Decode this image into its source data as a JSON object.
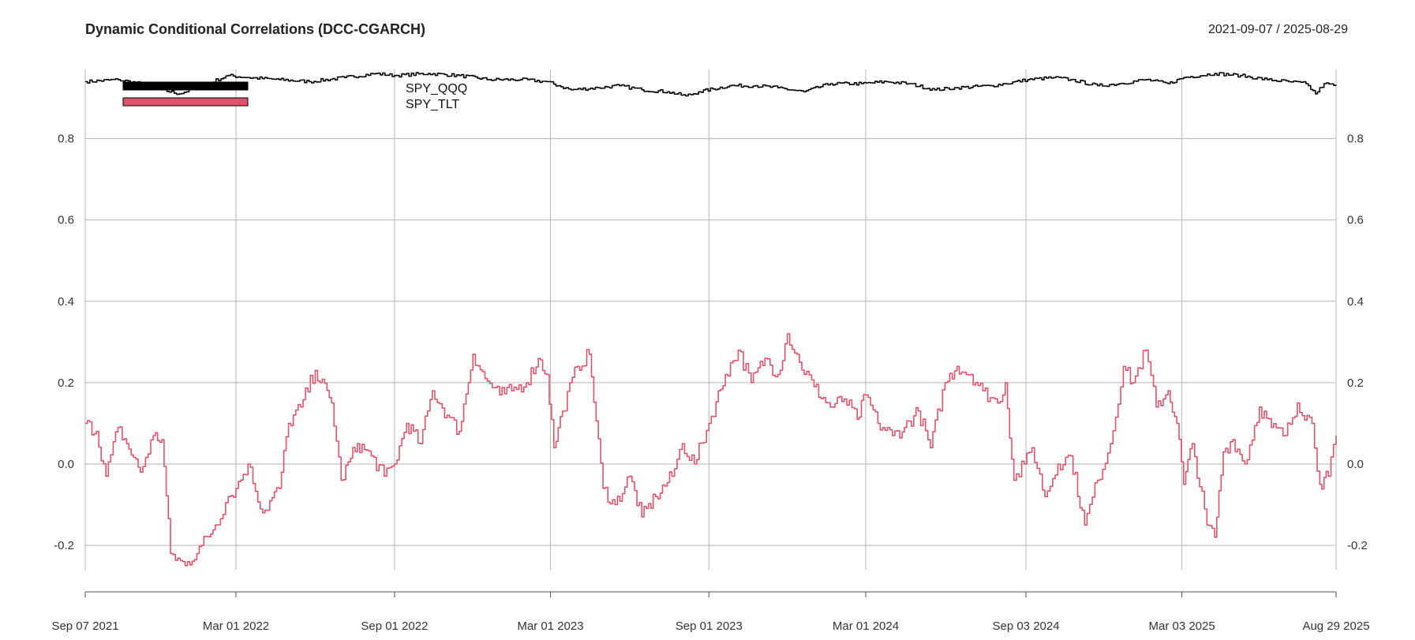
{
  "chart_data": {
    "type": "line",
    "title": "Dynamic Conditional Correlations (DCC-CGARCH)",
    "date_range": "2021-09-07 / 2025-08-29",
    "xlabel": "",
    "ylabel": "",
    "x_range": [
      "2021-09-07",
      "2025-08-29"
    ],
    "ylim": [
      -0.26,
      0.97
    ],
    "grid": true,
    "legend_position": "top-left",
    "y_ticks": [
      -0.2,
      0.0,
      0.2,
      0.4,
      0.6,
      0.8
    ],
    "y_tick_labels": [
      "-0.2",
      "0.0",
      "0.2",
      "0.4",
      "0.6",
      "0.8"
    ],
    "x_ticks": [
      {
        "date": "2021-09-07",
        "label": "Sep 07 2021"
      },
      {
        "date": "2022-03-01",
        "label": "Mar 01 2022"
      },
      {
        "date": "2022-09-01",
        "label": "Sep 01 2022"
      },
      {
        "date": "2023-03-01",
        "label": "Mar 01 2023"
      },
      {
        "date": "2023-09-01",
        "label": "Sep 01 2023"
      },
      {
        "date": "2024-03-01",
        "label": "Mar 01 2024"
      },
      {
        "date": "2024-09-03",
        "label": "Sep 03 2024"
      },
      {
        "date": "2025-03-03",
        "label": "Mar 03 2025"
      },
      {
        "date": "2025-08-29",
        "label": "Aug 29 2025"
      }
    ],
    "series": [
      {
        "name": "SPY_QQQ",
        "color": "#000000",
        "x": [
          "2021-09-07",
          "2021-10-15",
          "2021-11-10",
          "2021-12-05",
          "2021-12-25",
          "2022-01-20",
          "2022-02-20",
          "2022-03-15",
          "2022-04-20",
          "2022-05-25",
          "2022-07-05",
          "2022-08-10",
          "2022-09-01",
          "2022-10-10",
          "2022-11-15",
          "2022-12-20",
          "2023-01-25",
          "2023-02-25",
          "2023-03-10",
          "2023-03-25",
          "2023-04-25",
          "2023-05-20",
          "2023-06-15",
          "2023-07-15",
          "2023-08-05",
          "2023-08-20",
          "2023-09-25",
          "2023-10-25",
          "2023-11-20",
          "2023-12-20",
          "2024-01-20",
          "2024-02-25",
          "2024-03-25",
          "2024-04-20",
          "2024-05-20",
          "2024-06-15",
          "2024-07-25",
          "2024-08-10",
          "2024-09-05",
          "2024-10-05",
          "2024-10-25",
          "2024-11-25",
          "2024-12-20",
          "2025-01-20",
          "2025-02-15",
          "2025-03-05",
          "2025-04-10",
          "2025-05-10",
          "2025-06-10",
          "2025-07-05",
          "2025-07-25",
          "2025-08-05",
          "2025-08-15",
          "2025-08-29"
        ],
        "values": [
          0.94,
          0.945,
          0.935,
          0.92,
          0.91,
          0.93,
          0.955,
          0.95,
          0.945,
          0.94,
          0.95,
          0.96,
          0.955,
          0.96,
          0.955,
          0.945,
          0.945,
          0.94,
          0.93,
          0.92,
          0.925,
          0.93,
          0.92,
          0.915,
          0.905,
          0.915,
          0.93,
          0.93,
          0.925,
          0.915,
          0.935,
          0.935,
          0.94,
          0.935,
          0.92,
          0.925,
          0.93,
          0.935,
          0.945,
          0.95,
          0.945,
          0.93,
          0.935,
          0.945,
          0.935,
          0.95,
          0.96,
          0.955,
          0.945,
          0.94,
          0.935,
          0.91,
          0.935,
          0.93
        ]
      },
      {
        "name": "SPY_TLT",
        "color": "#DF536B",
        "x": [
          "2021-09-07",
          "2021-09-20",
          "2021-10-01",
          "2021-10-15",
          "2021-10-25",
          "2021-11-10",
          "2021-11-25",
          "2021-12-05",
          "2021-12-15",
          "2022-01-01",
          "2022-01-20",
          "2022-02-05",
          "2022-02-20",
          "2022-03-01",
          "2022-03-15",
          "2022-04-01",
          "2022-04-20",
          "2022-05-01",
          "2022-05-15",
          "2022-06-01",
          "2022-06-20",
          "2022-07-01",
          "2022-07-20",
          "2022-08-05",
          "2022-08-20",
          "2022-09-01",
          "2022-09-15",
          "2022-10-01",
          "2022-10-15",
          "2022-11-01",
          "2022-11-15",
          "2022-12-01",
          "2022-12-15",
          "2023-01-01",
          "2023-01-15",
          "2023-02-01",
          "2023-02-15",
          "2023-02-25",
          "2023-03-05",
          "2023-03-15",
          "2023-04-01",
          "2023-04-15",
          "2023-05-01",
          "2023-05-15",
          "2023-06-01",
          "2023-06-15",
          "2023-07-01",
          "2023-07-20",
          "2023-08-01",
          "2023-08-15",
          "2023-09-01",
          "2023-09-20",
          "2023-10-05",
          "2023-10-20",
          "2023-11-05",
          "2023-11-20",
          "2023-12-01",
          "2023-12-15",
          "2024-01-01",
          "2024-01-20",
          "2024-02-05",
          "2024-02-20",
          "2024-03-01",
          "2024-03-15",
          "2024-04-01",
          "2024-04-15",
          "2024-05-01",
          "2024-05-15",
          "2024-06-01",
          "2024-06-15",
          "2024-07-01",
          "2024-07-15",
          "2024-08-01",
          "2024-08-10",
          "2024-08-20",
          "2024-09-01",
          "2024-09-10",
          "2024-09-25",
          "2024-10-10",
          "2024-10-25",
          "2024-11-10",
          "2024-11-25",
          "2024-12-10",
          "2024-12-25",
          "2025-01-05",
          "2025-01-20",
          "2025-02-01",
          "2025-02-15",
          "2025-02-25",
          "2025-03-05",
          "2025-03-15",
          "2025-04-01",
          "2025-04-10",
          "2025-04-20",
          "2025-05-01",
          "2025-05-15",
          "2025-06-01",
          "2025-06-15",
          "2025-07-01",
          "2025-07-15",
          "2025-08-01",
          "2025-08-10",
          "2025-08-20",
          "2025-08-29"
        ],
        "values": [
          0.1,
          0.08,
          -0.03,
          0.09,
          0.05,
          -0.02,
          0.07,
          0.06,
          -0.22,
          -0.25,
          -0.2,
          -0.15,
          -0.08,
          -0.06,
          0.0,
          -0.12,
          -0.06,
          0.1,
          0.14,
          0.23,
          0.15,
          -0.04,
          0.05,
          0.02,
          -0.03,
          0.0,
          0.1,
          0.05,
          0.18,
          0.12,
          0.08,
          0.27,
          0.21,
          0.17,
          0.18,
          0.2,
          0.26,
          0.22,
          0.04,
          0.13,
          0.24,
          0.27,
          -0.06,
          -0.1,
          -0.03,
          -0.13,
          -0.08,
          -0.03,
          0.05,
          0.0,
          0.1,
          0.22,
          0.28,
          0.2,
          0.26,
          0.22,
          0.32,
          0.25,
          0.19,
          0.14,
          0.16,
          0.11,
          0.17,
          0.1,
          0.07,
          0.09,
          0.13,
          0.04,
          0.2,
          0.24,
          0.22,
          0.18,
          0.15,
          0.2,
          -0.04,
          0.0,
          0.04,
          -0.08,
          0.0,
          0.02,
          -0.15,
          -0.04,
          0.05,
          0.24,
          0.2,
          0.28,
          0.14,
          0.18,
          0.1,
          -0.05,
          0.05,
          -0.15,
          -0.18,
          0.03,
          0.06,
          0.0,
          0.14,
          0.09,
          0.07,
          0.15,
          0.1,
          -0.05,
          -0.03,
          0.07
        ]
      }
    ]
  }
}
